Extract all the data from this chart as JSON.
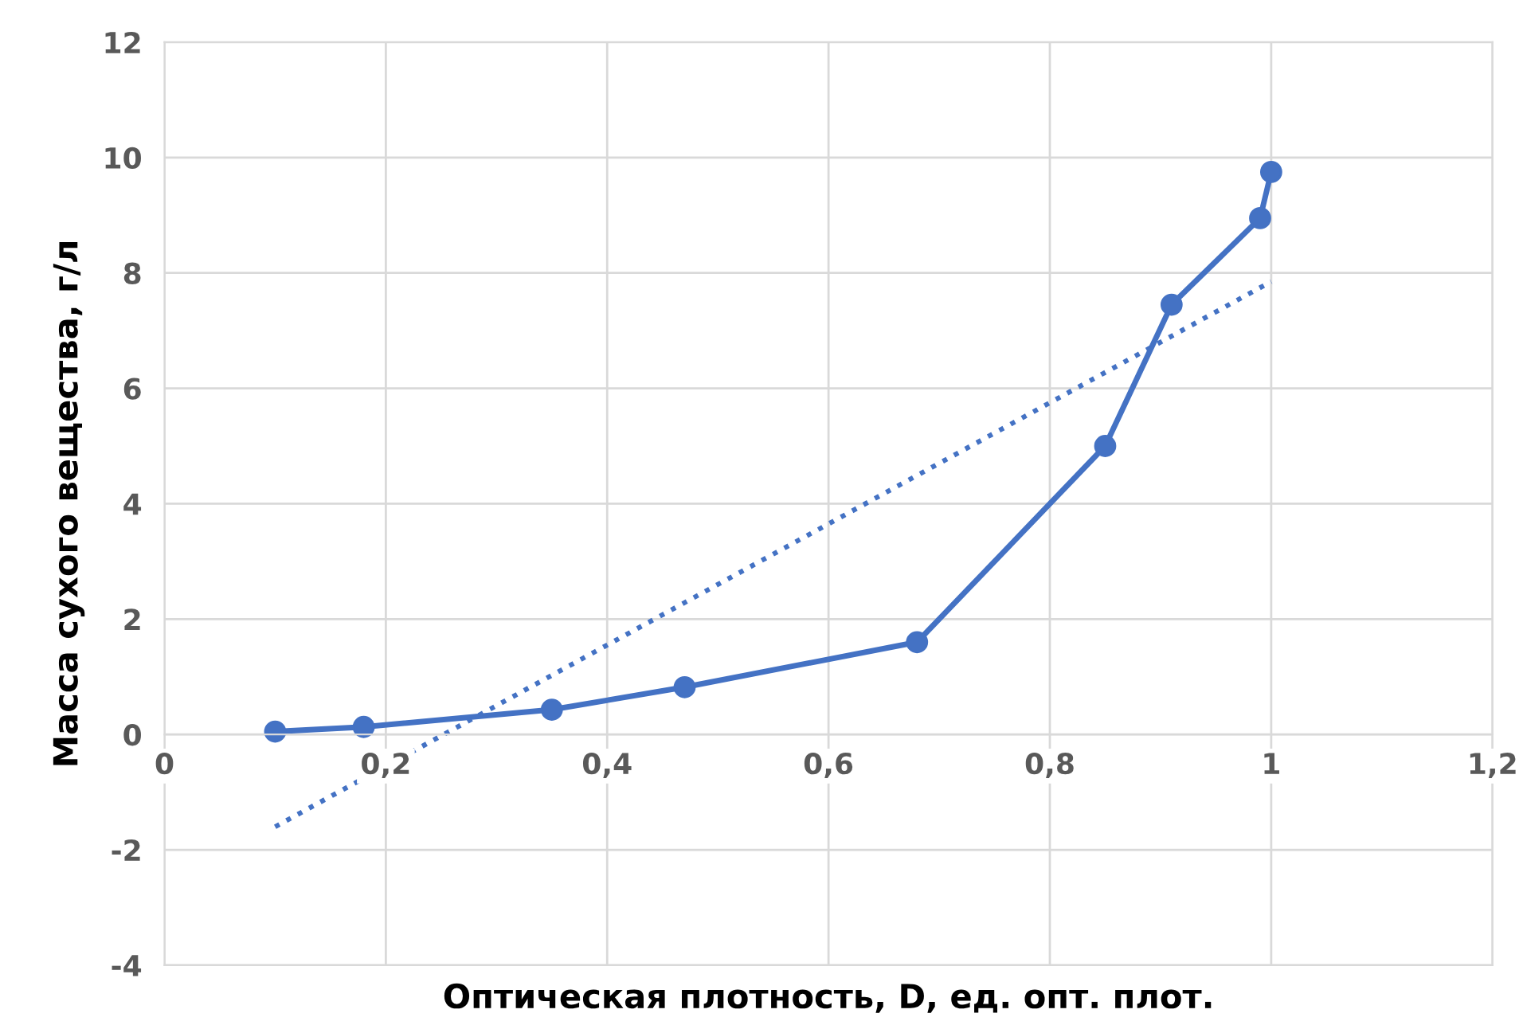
{
  "chart_data": {
    "type": "line",
    "xlabel": "Оптическая плотность, D, ед. опт. плот.",
    "ylabel": "Масса сухого вещества, г/л",
    "xlim": [
      0,
      1.2
    ],
    "xticks": [
      0,
      {
        "value": 0.2,
        "label": "0,2"
      },
      {
        "value": 0.4,
        "label": "0,4"
      },
      {
        "value": 0.6,
        "label": "0,6"
      },
      {
        "value": 0.8,
        "label": "0,8"
      },
      1,
      {
        "value": 1.2,
        "label": "1,2"
      }
    ],
    "ylim": [
      -4,
      12
    ],
    "yticks": [
      -4,
      -2,
      0,
      2,
      4,
      6,
      8,
      10,
      12
    ],
    "grid": true,
    "series": [
      {
        "color": "#4472c4",
        "x": [
          0.1,
          0.18,
          0.35,
          0.47,
          0.68,
          0.85,
          0.91,
          0.99,
          1.0
        ],
        "values": [
          0.05,
          0.13,
          0.43,
          0.82,
          1.6,
          5.0,
          7.45,
          8.95,
          9.75
        ],
        "line_style": "solid",
        "marker": "circle"
      },
      {
        "color": "#4472c4",
        "x": [
          0.1,
          1.0
        ],
        "values": [
          -1.6,
          7.85
        ],
        "line_style": "dotted",
        "marker": "none"
      }
    ]
  }
}
